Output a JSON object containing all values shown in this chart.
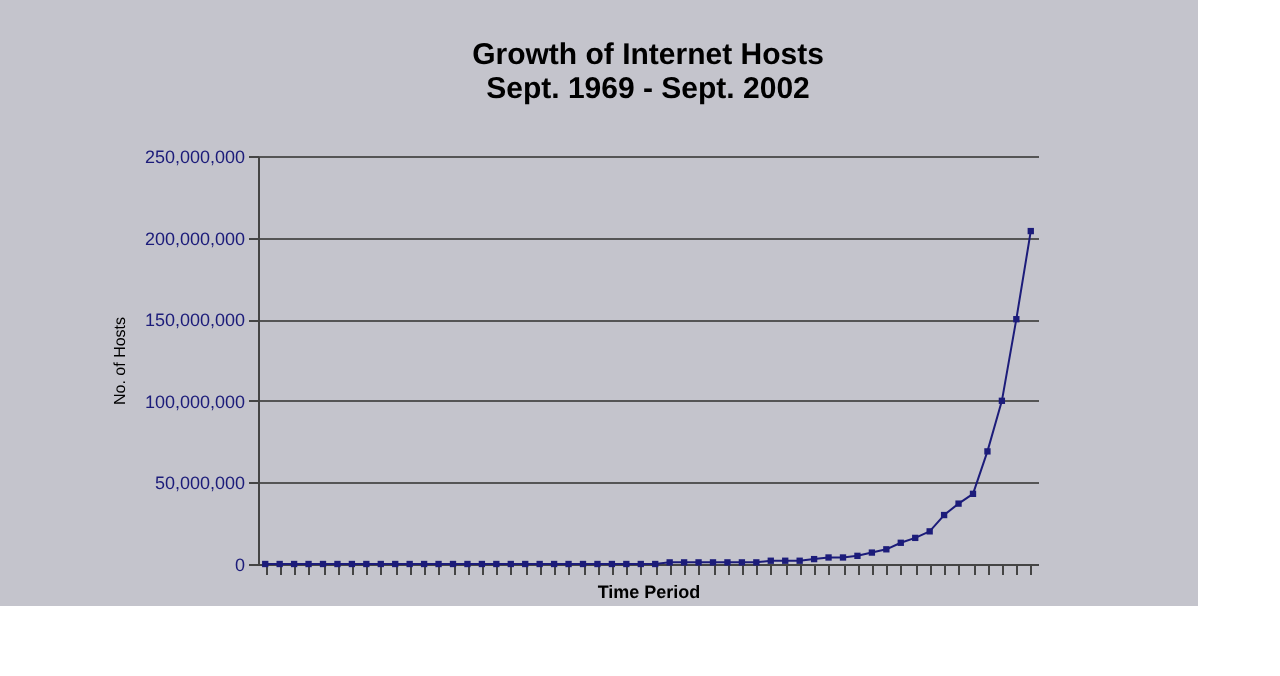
{
  "chart_data": {
    "type": "line",
    "title": [
      "Growth of Internet Hosts",
      "Sept. 1969 - Sept. 2002"
    ],
    "xlabel": "Time Period",
    "ylabel": "No. of Hosts",
    "categories": [
      null,
      null,
      null,
      null,
      null,
      null,
      null,
      null,
      null,
      null,
      null,
      null,
      null,
      null,
      null,
      null,
      null,
      null,
      null,
      null,
      null,
      null,
      null,
      null,
      null,
      null,
      null,
      null,
      null,
      null,
      null,
      null,
      null,
      null,
      null,
      null,
      null,
      null,
      null,
      null,
      null,
      null,
      null,
      null,
      null,
      null,
      null,
      null,
      null,
      null,
      null,
      null,
      null,
      null
    ],
    "series": [
      {
        "color": "#1c1c7a",
        "values": [
          0,
          0,
          0,
          0,
          0,
          0,
          0,
          0,
          0,
          0,
          0,
          0,
          0,
          0,
          0,
          0,
          0,
          0,
          0,
          0,
          0,
          0,
          0,
          0,
          0,
          0,
          0,
          0,
          1000000,
          1000000,
          1000000,
          1000000,
          1000000,
          1000000,
          1000000,
          2000000,
          2000000,
          2000000,
          3000000,
          4000000,
          4000000,
          5000000,
          7000000,
          9000000,
          13000000,
          16000000,
          20000000,
          30000000,
          37000000,
          43000000,
          69000000,
          100000000,
          150000000,
          204000000
        ]
      }
    ],
    "ylim": [
      0,
      250000000
    ],
    "yticks": [
      0,
      {
        "value": 50000000,
        "label": "50,000,000"
      },
      {
        "value": 100000000,
        "label": "100,000,000"
      },
      {
        "value": 150000000,
        "label": "150,000,000"
      },
      {
        "value": 200000000,
        "label": "200,000,000"
      },
      {
        "value": 250000000,
        "label": "250,000,000"
      }
    ],
    "grid": "y",
    "marker": "square",
    "line_style": "solid",
    "tick_labels": "y"
  }
}
